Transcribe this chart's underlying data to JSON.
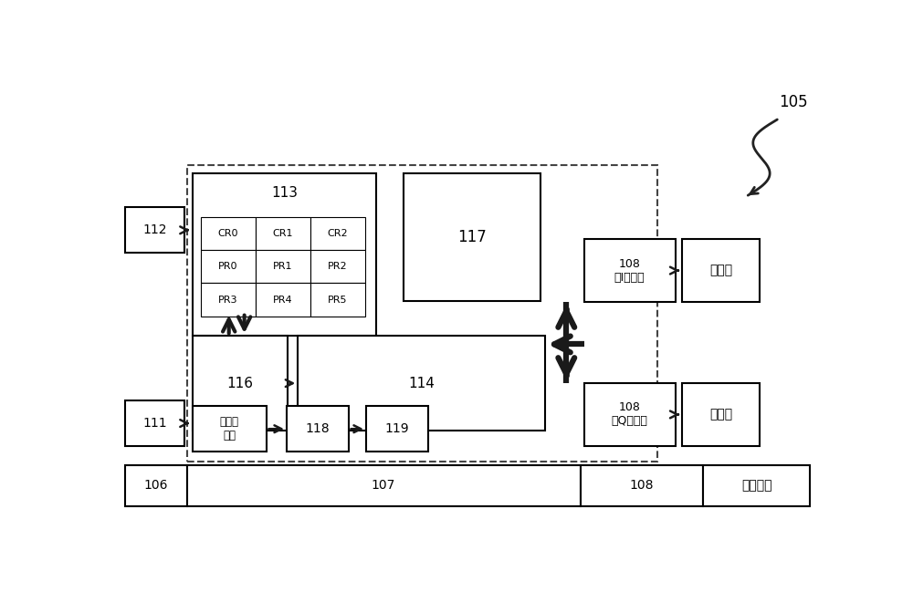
{
  "bg_color": "#ffffff",
  "fig_width": 10.0,
  "fig_height": 6.49,
  "dpi": 100,
  "label_105": "105",
  "label_112": "112",
  "label_113": "113",
  "label_116": "116",
  "label_114": "114",
  "label_117": "117",
  "label_111": "111",
  "label_118": "118",
  "label_119": "119",
  "label_106": "106",
  "label_107": "107",
  "label_108": "108",
  "label_108_I": "108\n（I信道）",
  "label_108_Q": "108\n（Q信道）",
  "label_filter1": "滤波器",
  "label_filter2": "滤波器",
  "label_clock": "时钟倍\n频器",
  "label_modu_out": "模拟输出",
  "label_cr_grid": [
    [
      "CR0",
      "CR1",
      "CR2"
    ],
    [
      "PR0",
      "PR1",
      "PR2"
    ],
    [
      "PR3",
      "PR4",
      "PR5"
    ]
  ],
  "text_color": "#000000",
  "box_edge_color": "#000000",
  "box_fill_color": "#ffffff",
  "arrow_color": "#1a1a1a"
}
